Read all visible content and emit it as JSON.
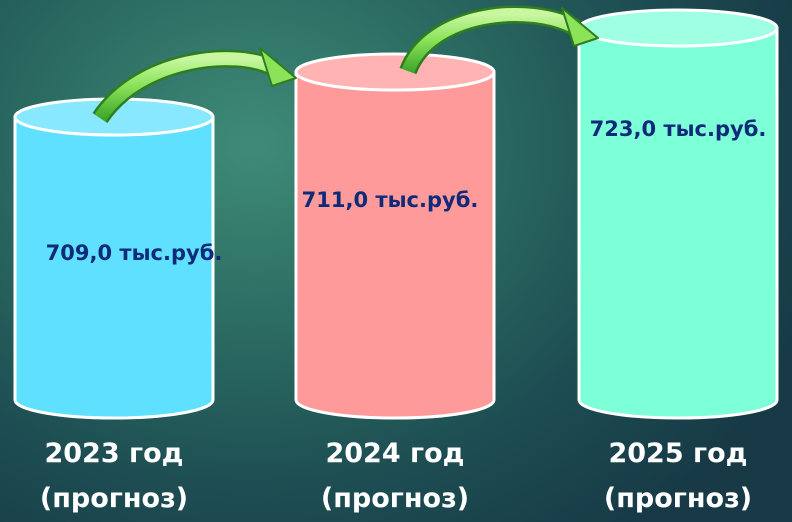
{
  "chart_data": {
    "type": "bar",
    "style": "cylinder",
    "categories": [
      "2023 год",
      "2024 год",
      "2025 год"
    ],
    "category_notes": [
      "(прогноз)",
      "(прогноз)",
      "(прогноз)"
    ],
    "values": [
      709.0,
      711.0,
      723.0
    ],
    "value_labels": [
      "709,0 тыс.руб.",
      "711,0 тыс.руб.",
      "723,0 тыс.руб."
    ],
    "colors": [
      "#5fe0ff",
      "#ff9a9a",
      "#7dffd8"
    ],
    "title": "",
    "xlabel": "",
    "ylabel": "",
    "connector": "curved-green-arrows"
  }
}
